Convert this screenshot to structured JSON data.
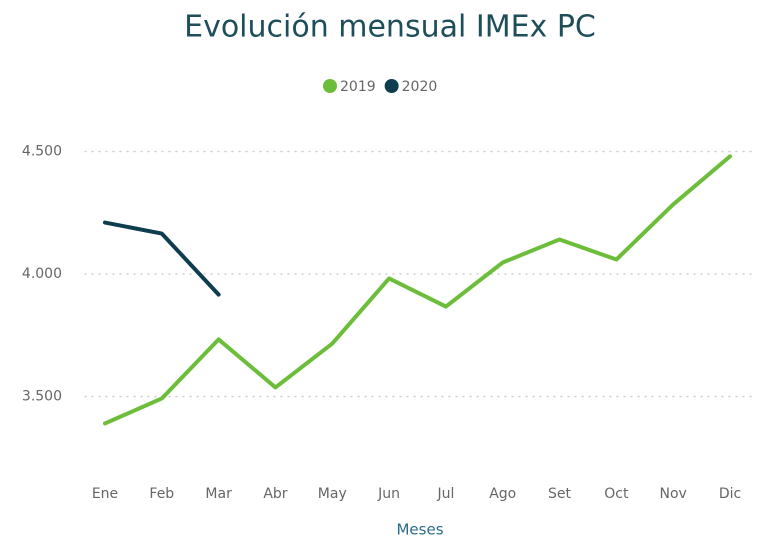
{
  "chart_data": {
    "type": "line",
    "title": "Evolución mensual IMEx PC",
    "x_label": "Meses",
    "categories": [
      "Ene",
      "Feb",
      "Mar",
      "Abr",
      "May",
      "Jun",
      "Jul",
      "Ago",
      "Set",
      "Oct",
      "Nov",
      "Dic"
    ],
    "series": [
      {
        "name": "2019",
        "color": "#6cbd3a",
        "values": [
          3390,
          3492,
          3733,
          3537,
          3716,
          3982,
          3867,
          4047,
          4141,
          4059,
          4284,
          4480
        ]
      },
      {
        "name": "2020",
        "color": "#0d3d4f",
        "values": [
          4210,
          4165,
          3916,
          null,
          null,
          null,
          null,
          null,
          null,
          null,
          null,
          null
        ]
      }
    ],
    "ylim": [
      3200,
      4600
    ],
    "yticks": [
      {
        "value": 3500,
        "label": "3.500"
      },
      {
        "value": 4000,
        "label": "4.000"
      },
      {
        "value": 4500,
        "label": "4.500"
      }
    ],
    "grid": true,
    "legend": "top"
  }
}
